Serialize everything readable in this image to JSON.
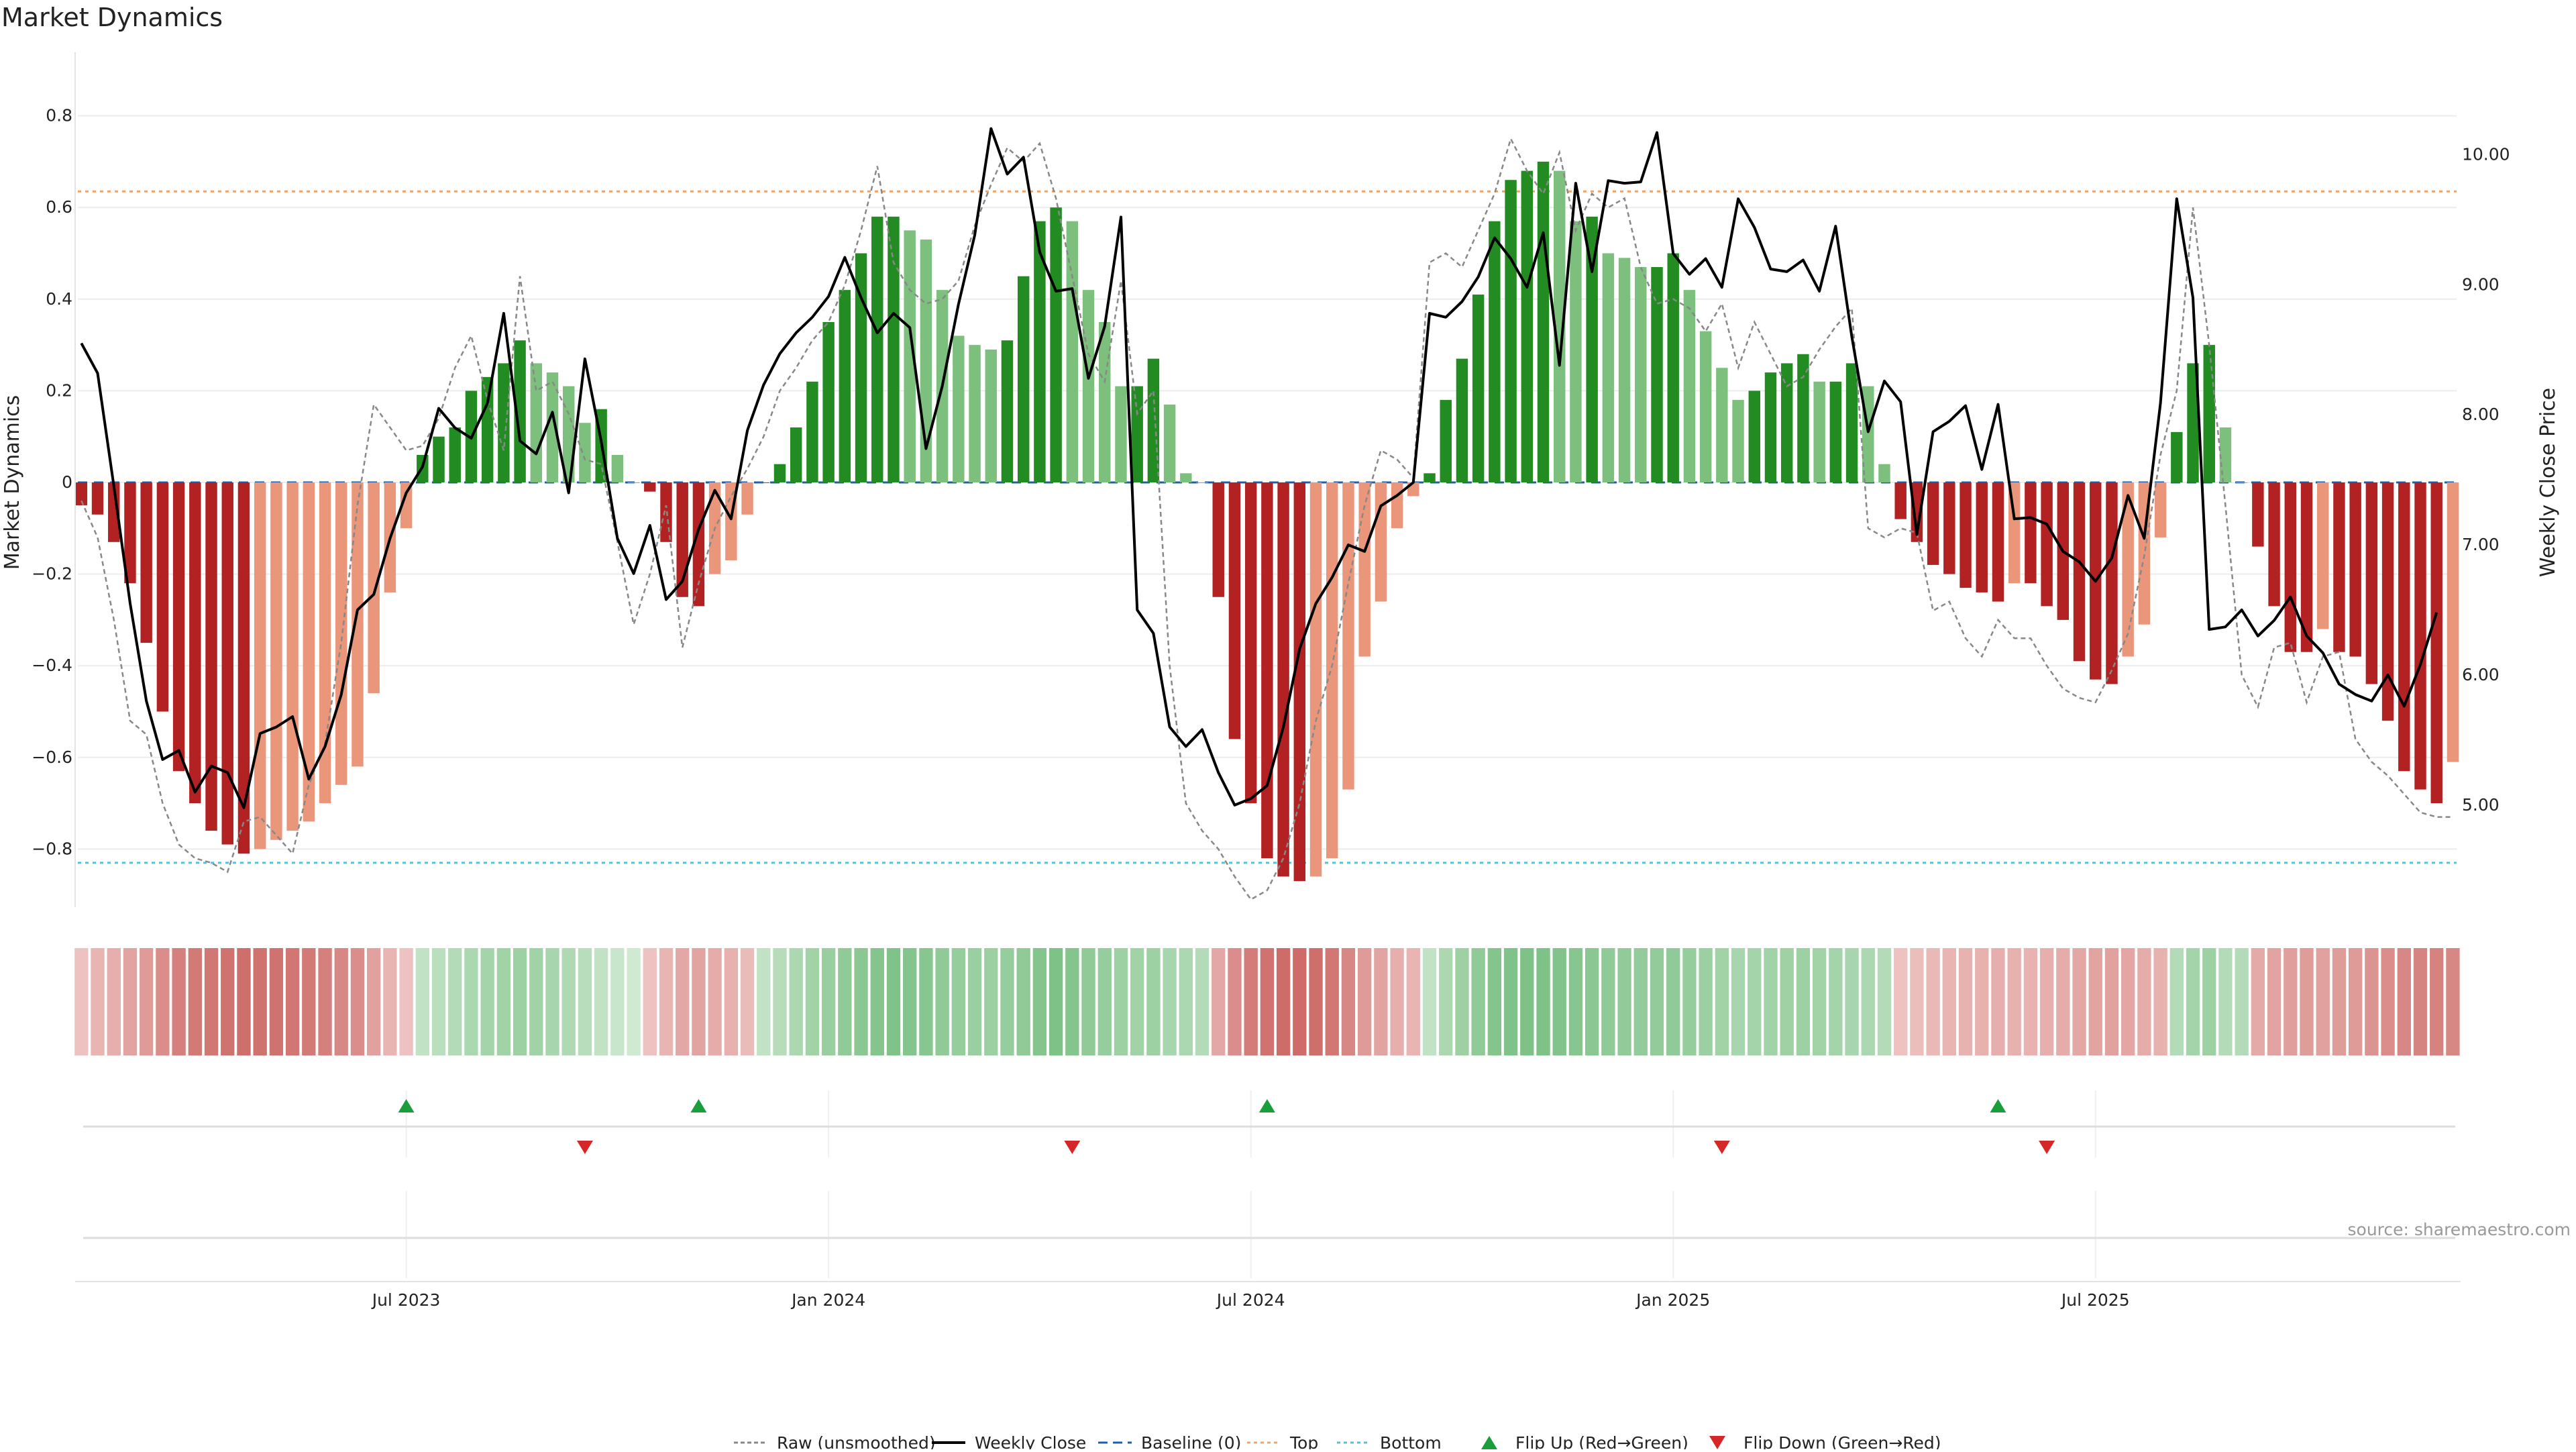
{
  "title": "Market Dynamics",
  "source": "source: sharemaestro.com",
  "colors": {
    "strong_red": "#b22222",
    "weak_red": "#e9967a",
    "strong_green": "#228b22",
    "weak_green": "#7dbf7d",
    "price_line": "#000000",
    "raw_line": "#888888",
    "baseline": "#1f5fa8",
    "top": "#f4a460",
    "bottom": "#4fc3e0",
    "flip_up": "#1a9e3c",
    "flip_down": "#d62728"
  },
  "legend": [
    {
      "key": "raw",
      "label": "Raw (unsmoothed)"
    },
    {
      "key": "price",
      "label": "Weekly Close"
    },
    {
      "key": "baseline",
      "label": "Baseline (0)"
    },
    {
      "key": "top",
      "label": "Top"
    },
    {
      "key": "bottom",
      "label": "Bottom"
    },
    {
      "key": "flip_up",
      "label": "Flip Up (Red→Green)"
    },
    {
      "key": "flip_down",
      "label": "Flip Down (Green→Red)"
    }
  ],
  "chart_data": {
    "type": "bar",
    "title": "Market Dynamics",
    "ylabel": "Market Dynamics",
    "y2label": "Weekly Close Price",
    "ylim": [
      -0.94,
      0.94
    ],
    "y2lim": [
      4.2,
      10.75
    ],
    "yticks": [
      "0.8",
      "0.6",
      "0.4",
      "0.2",
      "0",
      "−0.2",
      "−0.4",
      "−0.6",
      "−0.8"
    ],
    "y2ticks": [
      "10.00",
      "9.00",
      "8.00",
      "7.00",
      "6.00",
      "5.00"
    ],
    "xticks": [
      {
        "index": 20,
        "label": "Jul 2023"
      },
      {
        "index": 46,
        "label": "Jan 2024"
      },
      {
        "index": 72,
        "label": "Jul 2024"
      },
      {
        "index": 98,
        "label": "Jan 2025"
      },
      {
        "index": 124,
        "label": "Jul 2025"
      }
    ],
    "top_level": 0.635,
    "bottom_level": -0.83,
    "baseline": 0,
    "values": [
      -0.05,
      -0.07,
      -0.13,
      -0.22,
      -0.35,
      -0.5,
      -0.63,
      -0.7,
      -0.76,
      -0.79,
      -0.81,
      -0.8,
      -0.78,
      -0.76,
      -0.74,
      -0.7,
      -0.66,
      -0.62,
      -0.46,
      -0.24,
      -0.1,
      0.06,
      0.1,
      0.12,
      0.2,
      0.23,
      0.26,
      0.31,
      0.26,
      0.24,
      0.21,
      0.13,
      0.16,
      0.06,
      0,
      -0.02,
      -0.13,
      -0.25,
      -0.27,
      -0.2,
      -0.17,
      -0.07,
      0,
      0.04,
      0.12,
      0.22,
      0.35,
      0.42,
      0.5,
      0.58,
      0.58,
      0.55,
      0.53,
      0.42,
      0.32,
      0.3,
      0.29,
      0.31,
      0.45,
      0.57,
      0.6,
      0.57,
      0.42,
      0.35,
      0.21,
      0.21,
      0.27,
      0.17,
      0.02,
      0,
      -0.25,
      -0.56,
      -0.7,
      -0.82,
      -0.86,
      -0.87,
      -0.86,
      -0.82,
      -0.67,
      -0.38,
      -0.26,
      -0.1,
      -0.03,
      0.02,
      0.18,
      0.27,
      0.41,
      0.57,
      0.66,
      0.68,
      0.7,
      0.68,
      0.57,
      0.58,
      0.5,
      0.49,
      0.47,
      0.47,
      0.5,
      0.42,
      0.33,
      0.25,
      0.18,
      0.2,
      0.24,
      0.26,
      0.28,
      0.22,
      0.22,
      0.26,
      0.21,
      0.04,
      -0.08,
      -0.13,
      -0.18,
      -0.2,
      -0.23,
      -0.24,
      -0.26,
      -0.22,
      -0.22,
      -0.27,
      -0.3,
      -0.39,
      -0.43,
      -0.44,
      -0.38,
      -0.31,
      -0.12,
      0.11,
      0.26,
      0.3,
      0.12,
      0,
      -0.14,
      -0.27,
      -0.37,
      -0.37,
      -0.32,
      -0.37,
      -0.38,
      -0.44,
      -0.52,
      -0.63,
      -0.67,
      -0.7,
      -0.61
    ],
    "raw": [
      -0.04,
      -0.12,
      -0.3,
      -0.52,
      -0.55,
      -0.7,
      -0.79,
      -0.82,
      -0.83,
      -0.85,
      -0.74,
      -0.73,
      -0.77,
      -0.81,
      -0.66,
      -0.57,
      -0.35,
      -0.05,
      0.17,
      0.12,
      0.07,
      0.08,
      0.14,
      0.25,
      0.32,
      0.18,
      0.07,
      0.45,
      0.2,
      0.22,
      0.15,
      0.05,
      0.04,
      -0.13,
      -0.31,
      -0.2,
      -0.05,
      -0.36,
      -0.22,
      -0.1,
      -0.03,
      0.03,
      0.1,
      0.2,
      0.25,
      0.31,
      0.35,
      0.43,
      0.55,
      0.69,
      0.48,
      0.42,
      0.39,
      0.4,
      0.44,
      0.56,
      0.65,
      0.73,
      0.7,
      0.74,
      0.62,
      0.45,
      0.28,
      0.22,
      0.44,
      0.15,
      0.2,
      -0.4,
      -0.7,
      -0.76,
      -0.8,
      -0.86,
      -0.91,
      -0.89,
      -0.82,
      -0.7,
      -0.52,
      -0.4,
      -0.22,
      -0.05,
      0.07,
      0.05,
      0.01,
      0.48,
      0.5,
      0.47,
      0.55,
      0.63,
      0.75,
      0.68,
      0.63,
      0.72,
      0.55,
      0.63,
      0.6,
      0.62,
      0.47,
      0.39,
      0.4,
      0.38,
      0.33,
      0.39,
      0.25,
      0.35,
      0.28,
      0.21,
      0.23,
      0.29,
      0.34,
      0.38,
      -0.1,
      -0.12,
      -0.1,
      -0.11,
      -0.28,
      -0.26,
      -0.34,
      -0.38,
      -0.3,
      -0.34,
      -0.34,
      -0.4,
      -0.45,
      -0.47,
      -0.48,
      -0.41,
      -0.33,
      -0.16,
      0.06,
      0.2,
      0.6,
      0.3,
      -0.05,
      -0.42,
      -0.49,
      -0.36,
      -0.35,
      -0.48,
      -0.38,
      -0.37,
      -0.56,
      -0.61,
      -0.64,
      -0.68,
      -0.72,
      -0.73,
      -0.73
    ],
    "price": [
      8.55,
      8.32,
      7.45,
      6.55,
      5.8,
      5.35,
      5.42,
      5.1,
      5.3,
      5.25,
      4.98,
      5.55,
      5.6,
      5.68,
      5.2,
      5.45,
      5.85,
      6.5,
      6.62,
      7.05,
      7.4,
      7.6,
      8.05,
      7.9,
      7.82,
      8.09,
      8.78,
      7.8,
      7.7,
      8.02,
      7.4,
      8.43,
      7.8,
      7.05,
      6.78,
      7.15,
      6.58,
      6.72,
      7.12,
      7.42,
      7.2,
      7.88,
      8.23,
      8.47,
      8.63,
      8.75,
      8.91,
      9.21,
      8.9,
      8.63,
      8.78,
      8.67,
      7.74,
      8.22,
      8.85,
      9.38,
      10.2,
      9.85,
      9.98,
      9.25,
      8.95,
      8.97,
      8.28,
      8.68,
      9.52,
      6.5,
      6.32,
      5.6,
      5.45,
      5.58,
      5.25,
      5.0,
      5.05,
      5.15,
      5.6,
      6.2,
      6.55,
      6.75,
      7.0,
      6.95,
      7.3,
      7.38,
      7.48,
      8.78,
      8.75,
      8.87,
      9.06,
      9.36,
      9.2,
      8.98,
      9.4,
      8.38,
      9.78,
      9.1,
      9.8,
      9.78,
      9.79,
      10.17,
      9.24,
      9.08,
      9.2,
      8.98,
      9.66,
      9.44,
      9.12,
      9.1,
      9.19,
      8.95,
      9.45,
      8.6,
      7.87,
      8.26,
      8.1,
      7.08,
      7.87,
      7.95,
      8.07,
      7.58,
      8.08,
      7.2,
      7.21,
      7.16,
      6.95,
      6.87,
      6.72,
      6.9,
      7.38,
      7.05,
      8.09,
      9.66,
      8.9,
      6.35,
      6.37,
      6.5,
      6.3,
      6.42,
      6.6,
      6.3,
      6.17,
      5.93,
      5.85,
      5.8,
      6.0,
      5.76,
      6.08,
      6.48
    ],
    "heat": [
      0.15,
      0.25,
      0.3,
      0.38,
      0.45,
      0.55,
      0.65,
      0.7,
      0.72,
      0.75,
      0.78,
      0.76,
      0.75,
      0.73,
      0.7,
      0.65,
      0.6,
      0.55,
      0.4,
      0.25,
      0.15,
      0.2,
      0.25,
      0.3,
      0.35,
      0.4,
      0.42,
      0.45,
      0.42,
      0.38,
      0.33,
      0.27,
      0.2,
      0.15,
      0.1,
      0.15,
      0.25,
      0.35,
      0.38,
      0.32,
      0.28,
      0.2,
      0.2,
      0.28,
      0.35,
      0.42,
      0.48,
      0.55,
      0.58,
      0.62,
      0.65,
      0.62,
      0.6,
      0.55,
      0.5,
      0.47,
      0.46,
      0.5,
      0.55,
      0.62,
      0.66,
      0.62,
      0.55,
      0.5,
      0.45,
      0.42,
      0.45,
      0.38,
      0.35,
      0.3,
      0.35,
      0.55,
      0.68,
      0.75,
      0.8,
      0.8,
      0.78,
      0.72,
      0.6,
      0.45,
      0.38,
      0.3,
      0.25,
      0.2,
      0.35,
      0.45,
      0.55,
      0.62,
      0.65,
      0.66,
      0.66,
      0.64,
      0.6,
      0.58,
      0.55,
      0.53,
      0.52,
      0.52,
      0.54,
      0.5,
      0.46,
      0.42,
      0.38,
      0.4,
      0.42,
      0.44,
      0.45,
      0.42,
      0.4,
      0.38,
      0.35,
      0.3,
      0.15,
      0.18,
      0.22,
      0.25,
      0.27,
      0.28,
      0.3,
      0.28,
      0.27,
      0.3,
      0.32,
      0.35,
      0.38,
      0.4,
      0.36,
      0.32,
      0.28,
      0.3,
      0.4,
      0.45,
      0.3,
      0.3,
      0.33,
      0.38,
      0.42,
      0.43,
      0.4,
      0.43,
      0.45,
      0.5,
      0.55,
      0.6,
      0.62,
      0.63,
      0.6
    ],
    "flip_up": [
      20,
      38,
      73,
      118
    ],
    "flip_down": [
      31,
      61,
      101,
      121
    ]
  }
}
